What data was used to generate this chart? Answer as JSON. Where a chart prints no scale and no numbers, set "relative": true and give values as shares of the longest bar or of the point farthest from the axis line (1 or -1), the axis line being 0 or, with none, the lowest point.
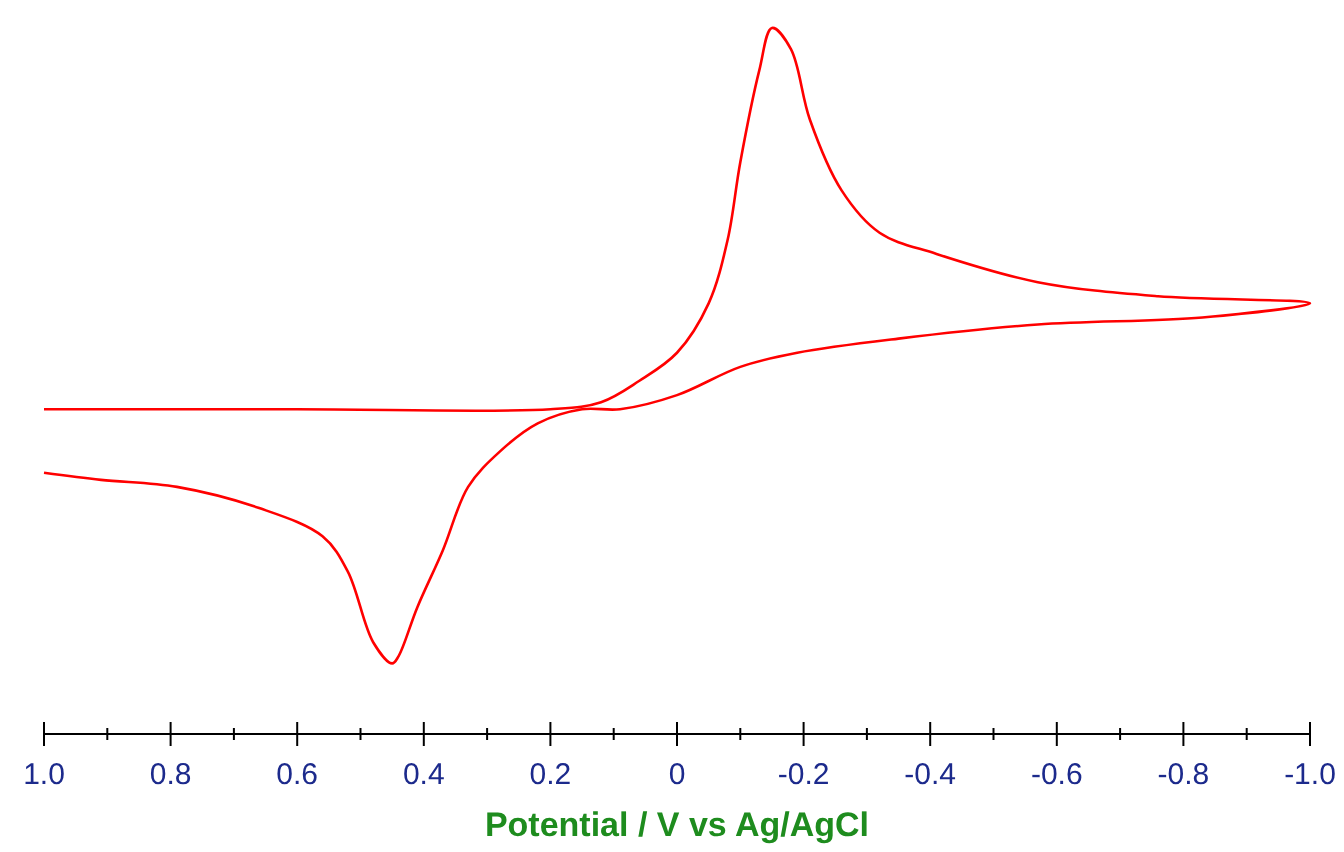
{
  "chart_data": {
    "type": "line",
    "relative": true,
    "xlabel": "Potential / V vs Ag/AgCl",
    "color": "#ff0000",
    "xlim": [
      1.0,
      -1.0
    ],
    "xticks": [
      {
        "value": 1.0,
        "label": "1.0"
      },
      {
        "value": 0.9,
        "label": null
      },
      {
        "value": 0.8,
        "label": "0.8"
      },
      {
        "value": 0.7,
        "label": null
      },
      {
        "value": 0.6,
        "label": "0.6"
      },
      {
        "value": 0.5,
        "label": null
      },
      {
        "value": 0.4,
        "label": "0.4"
      },
      {
        "value": 0.3,
        "label": null
      },
      {
        "value": 0.2,
        "label": "0.2"
      },
      {
        "value": 0.1,
        "label": null
      },
      0,
      {
        "value": -0.1,
        "label": null
      },
      {
        "value": -0.2,
        "label": "-0.2"
      },
      {
        "value": -0.3,
        "label": null
      },
      {
        "value": -0.4,
        "label": "-0.4"
      },
      {
        "value": -0.5,
        "label": null
      },
      {
        "value": -0.6,
        "label": "-0.6"
      },
      {
        "value": -0.7,
        "label": null
      },
      {
        "value": -0.8,
        "label": "-0.8"
      },
      {
        "value": -0.9,
        "label": null
      },
      {
        "value": -1.0,
        "label": "-1.0"
      }
    ],
    "x": [
      1.0,
      0.6,
      0.2,
      0.12,
      0.06,
      0,
      -0.05,
      -0.08,
      -0.1,
      -0.13,
      -0.15,
      -0.18,
      -0.21,
      -0.26,
      -0.32,
      -0.41,
      -0.57,
      -0.76,
      -1.0,
      -0.83,
      -0.57,
      -0.35,
      -0.19,
      -0.1,
      0,
      0.09,
      0.15,
      0.22,
      0.28,
      0.33,
      0.37,
      0.41,
      0.44,
      0.45,
      0.48,
      0.52,
      0.56,
      0.66,
      0.79,
      0.91,
      1.0
    ],
    "values": [
      0.46,
      0.46,
      0.46,
      0.47,
      0.5,
      0.54,
      0.61,
      0.7,
      0.81,
      0.94,
      1,
      0.97,
      0.87,
      0.77,
      0.71,
      0.68,
      0.64,
      0.62,
      0.61,
      0.59,
      0.58,
      0.56,
      0.54,
      0.52,
      0.48,
      0.46,
      0.46,
      0.44,
      0.4,
      0.35,
      0.26,
      0.18,
      0.11,
      0.1,
      0.13,
      0.23,
      0.28,
      0.32,
      0.35,
      0.36,
      0.37
    ]
  }
}
